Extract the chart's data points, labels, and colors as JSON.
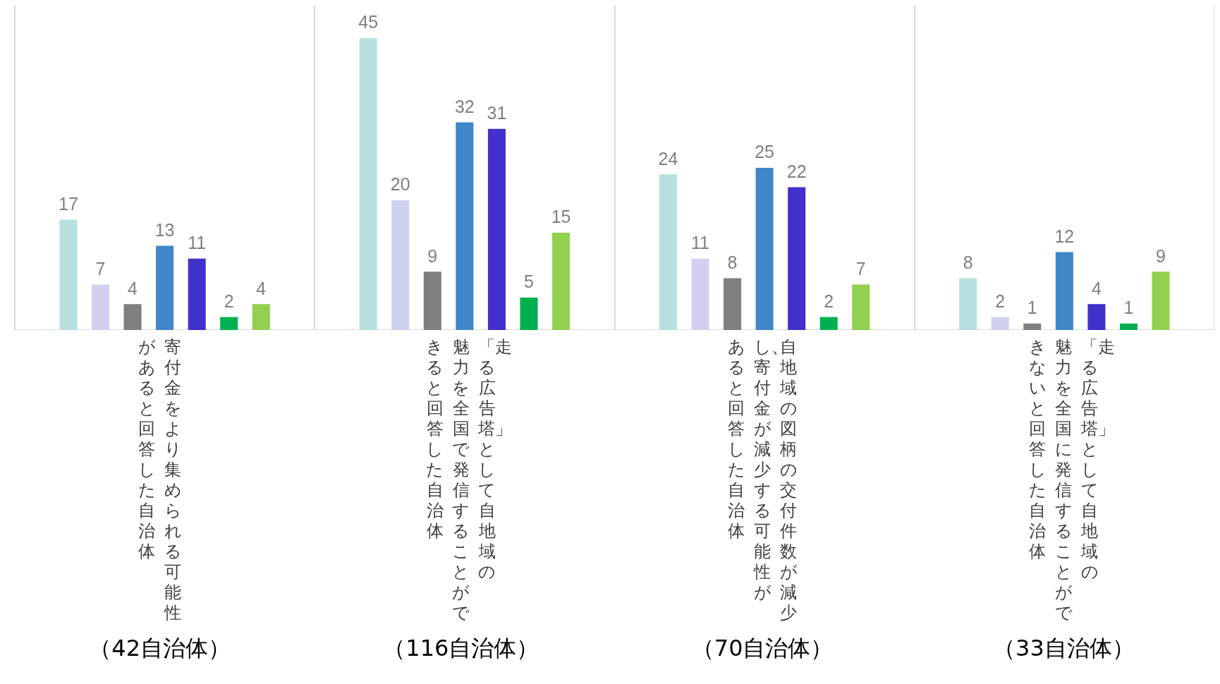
{
  "chart_data": {
    "type": "bar",
    "categories": [
      "寄付金をより集められる可能性があると回答した自治体（42自治体）",
      "「走る広告塔」として自地域の魅力を全国で発信することができると回答した自治体（116自治体）",
      "自地域の図柄の交付件数が減少し、寄付金が減少する可能性があると回答した自治体（70自治体）",
      "「走る広告塔」として自地域の魅力を全国に発信することができないと回答した自治体（33自治体）"
    ],
    "series": [
      {
        "color": "#b9e0e1",
        "values": [
          17,
          45,
          24,
          8
        ]
      },
      {
        "color": "#d1d1ef",
        "values": [
          7,
          20,
          11,
          2
        ]
      },
      {
        "color": "#7f7f7f",
        "values": [
          4,
          9,
          8,
          1
        ]
      },
      {
        "color": "#3f87c9",
        "values": [
          13,
          32,
          25,
          12
        ]
      },
      {
        "color": "#4131c9",
        "values": [
          11,
          31,
          22,
          4
        ]
      },
      {
        "color": "#00b050",
        "values": [
          2,
          5,
          2,
          1
        ]
      },
      {
        "color": "#92d050",
        "values": [
          4,
          15,
          7,
          9
        ]
      }
    ],
    "ylim": [
      0,
      50
    ],
    "tick_labels": false,
    "grid": "x",
    "data_labels": true,
    "legend": false
  }
}
